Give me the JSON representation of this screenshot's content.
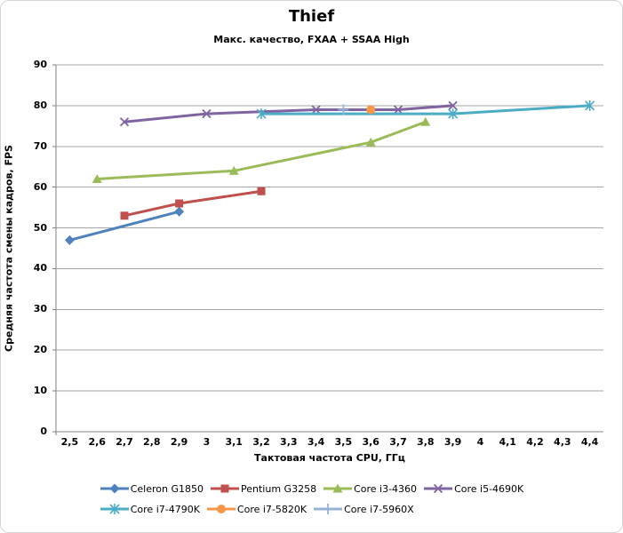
{
  "window": {
    "title": "Thief"
  },
  "chart_data": {
    "type": "line",
    "title": "Thief",
    "subtitle": "Макс. качество, FXAA + SSAA High",
    "xlabel": "Тактовая частота CPU, ГГц",
    "ylabel": "Средняя частота смены кадров, FPS",
    "x_ticks": [
      "2,5",
      "2,6",
      "2,7",
      "2,8",
      "2,9",
      "3",
      "3,1",
      "3,2",
      "3,3",
      "3,4",
      "3,5",
      "3,6",
      "3,7",
      "3,8",
      "3,9",
      "4",
      "4,1",
      "4,2",
      "4,3",
      "4,4"
    ],
    "x_tick_values": [
      2.5,
      2.6,
      2.7,
      2.8,
      2.9,
      3.0,
      3.1,
      3.2,
      3.3,
      3.4,
      3.5,
      3.6,
      3.7,
      3.8,
      3.9,
      4.0,
      4.1,
      4.2,
      4.3,
      4.4
    ],
    "y_ticks": [
      "0",
      "10",
      "20",
      "30",
      "40",
      "50",
      "60",
      "70",
      "80",
      "90"
    ],
    "y_tick_values": [
      0,
      10,
      20,
      30,
      40,
      50,
      60,
      70,
      80,
      90
    ],
    "ylim": [
      0,
      90
    ],
    "grid": "horizontal",
    "legend_position": "bottom",
    "axis_color": "#808080",
    "grid_color": "#a6a6a6",
    "series": [
      {
        "name": "Celeron G1850",
        "color": "#4F81BD",
        "marker": "diamond",
        "points": [
          [
            2.5,
            47
          ],
          [
            2.9,
            54
          ]
        ]
      },
      {
        "name": "Pentium G3258",
        "color": "#C0504D",
        "marker": "square",
        "points": [
          [
            2.7,
            53
          ],
          [
            2.9,
            56
          ],
          [
            3.2,
            59
          ]
        ]
      },
      {
        "name": "Core i3-4360",
        "color": "#9BBB59",
        "marker": "triangle",
        "points": [
          [
            2.6,
            62
          ],
          [
            3.1,
            64
          ],
          [
            3.6,
            71
          ],
          [
            3.8,
            76
          ]
        ]
      },
      {
        "name": "Core i5-4690K",
        "color": "#8064A2",
        "marker": "x",
        "points": [
          [
            2.7,
            76
          ],
          [
            3.0,
            78
          ],
          [
            3.4,
            79
          ],
          [
            3.7,
            79
          ],
          [
            3.9,
            80
          ]
        ]
      },
      {
        "name": "Core i7-4790K",
        "color": "#4BACC6",
        "marker": "star",
        "points": [
          [
            3.2,
            78
          ],
          [
            3.9,
            78
          ],
          [
            4.4,
            80
          ]
        ]
      },
      {
        "name": "Core i7-5820K",
        "color": "#F79646",
        "marker": "circle",
        "points": [
          [
            3.6,
            79
          ]
        ]
      },
      {
        "name": "Core i7-5960X",
        "color": "#95B3D7",
        "marker": "plus",
        "points": [
          [
            3.5,
            79
          ]
        ]
      }
    ],
    "legend_rows": [
      [
        0,
        1,
        2,
        3
      ],
      [
        4,
        5,
        6
      ]
    ]
  }
}
